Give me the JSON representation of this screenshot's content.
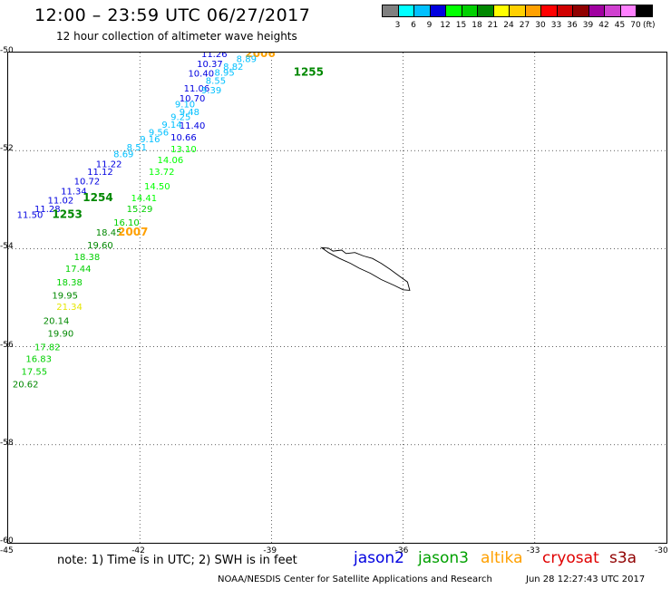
{
  "title": "12:00 – 23:59 UTC 06/27/2017",
  "subtitle": "12 hour collection of altimeter wave heights",
  "legend": {
    "colors": [
      "#808080",
      "#00ffff",
      "#00c0ff",
      "#0000e0",
      "#00ff00",
      "#00d000",
      "#008800",
      "#ffff00",
      "#ffd000",
      "#ffa000",
      "#ff0000",
      "#d00000",
      "#900000",
      "#a000a0",
      "#d040d0",
      "#ff80ff",
      "#000000"
    ],
    "labels": [
      "3",
      "6",
      "9",
      "12",
      "15",
      "18",
      "21",
      "24",
      "27",
      "30",
      "33",
      "36",
      "39",
      "42",
      "45",
      "70"
    ],
    "unit": "(ft)"
  },
  "map": {
    "lon_range": [
      -45,
      -30
    ],
    "lat_range": [
      -60,
      -50
    ],
    "x_ticks": [
      "-45",
      "-42",
      "-39",
      "-36",
      "-33",
      "-30"
    ],
    "y_ticks": [
      "-50",
      "-52",
      "-54",
      "-56",
      "-58",
      "-60"
    ]
  },
  "observations": [
    {
      "text": "11.26",
      "lon": -40.6,
      "lat": -50.02,
      "color": "#0000e0"
    },
    {
      "text": "2006",
      "lon": -39.6,
      "lat": -50.02,
      "color": "#ffa000",
      "big": true
    },
    {
      "text": "8.89",
      "lon": -39.8,
      "lat": -50.12,
      "color": "#00c0ff"
    },
    {
      "text": "10.37",
      "lon": -40.7,
      "lat": -50.22,
      "color": "#0000e0"
    },
    {
      "text": "8.82",
      "lon": -40.1,
      "lat": -50.28,
      "color": "#00c0ff"
    },
    {
      "text": "10.40",
      "lon": -40.9,
      "lat": -50.42,
      "color": "#0000e0"
    },
    {
      "text": "8.95",
      "lon": -40.3,
      "lat": -50.4,
      "color": "#00c0ff"
    },
    {
      "text": "1255",
      "lon": -38.5,
      "lat": -50.4,
      "color": "#008800",
      "big": true
    },
    {
      "text": "8.55",
      "lon": -40.5,
      "lat": -50.56,
      "color": "#00c0ff"
    },
    {
      "text": "11.06",
      "lon": -41.0,
      "lat": -50.72,
      "color": "#0000e0"
    },
    {
      "text": "9.39",
      "lon": -40.6,
      "lat": -50.76,
      "color": "#00c0ff"
    },
    {
      "text": "10.70",
      "lon": -41.1,
      "lat": -50.92,
      "color": "#0000e0"
    },
    {
      "text": "9.10",
      "lon": -41.2,
      "lat": -51.04,
      "color": "#00c0ff"
    },
    {
      "text": "9.48",
      "lon": -41.1,
      "lat": -51.2,
      "color": "#00c0ff"
    },
    {
      "text": "9.25",
      "lon": -41.3,
      "lat": -51.3,
      "color": "#00c0ff"
    },
    {
      "text": "9.14",
      "lon": -41.5,
      "lat": -51.46,
      "color": "#00c0ff"
    },
    {
      "text": "11.40",
      "lon": -41.1,
      "lat": -51.48,
      "color": "#0000e0"
    },
    {
      "text": "9.56",
      "lon": -41.8,
      "lat": -51.62,
      "color": "#00c0ff"
    },
    {
      "text": "10.66",
      "lon": -41.3,
      "lat": -51.72,
      "color": "#0000e0"
    },
    {
      "text": "9.16",
      "lon": -42.0,
      "lat": -51.76,
      "color": "#00c0ff"
    },
    {
      "text": "8.51",
      "lon": -42.3,
      "lat": -51.92,
      "color": "#00c0ff"
    },
    {
      "text": "13.10",
      "lon": -41.3,
      "lat": -51.96,
      "color": "#00ff00"
    },
    {
      "text": "8.69",
      "lon": -42.6,
      "lat": -52.06,
      "color": "#00c0ff"
    },
    {
      "text": "14.06",
      "lon": -41.6,
      "lat": -52.18,
      "color": "#00ff00"
    },
    {
      "text": "11.22",
      "lon": -43.0,
      "lat": -52.26,
      "color": "#0000e0"
    },
    {
      "text": "11.12",
      "lon": -43.2,
      "lat": -52.42,
      "color": "#0000e0"
    },
    {
      "text": "13.72",
      "lon": -41.8,
      "lat": -52.42,
      "color": "#00ff00"
    },
    {
      "text": "10.72",
      "lon": -43.5,
      "lat": -52.62,
      "color": "#0000e0"
    },
    {
      "text": "14.50",
      "lon": -41.9,
      "lat": -52.72,
      "color": "#00ff00"
    },
    {
      "text": "11.34",
      "lon": -43.8,
      "lat": -52.82,
      "color": "#0000e0"
    },
    {
      "text": "14.41",
      "lon": -42.2,
      "lat": -52.96,
      "color": "#00ff00"
    },
    {
      "text": "1254",
      "lon": -43.3,
      "lat": -52.96,
      "color": "#008800",
      "big": true
    },
    {
      "text": "11.02",
      "lon": -44.1,
      "lat": -53.0,
      "color": "#0000e0"
    },
    {
      "text": "11.28",
      "lon": -44.4,
      "lat": -53.18,
      "color": "#0000e0"
    },
    {
      "text": "15.29",
      "lon": -42.3,
      "lat": -53.18,
      "color": "#00d000"
    },
    {
      "text": "11.50",
      "lon": -44.8,
      "lat": -53.3,
      "color": "#0000e0"
    },
    {
      "text": "1253",
      "lon": -44.0,
      "lat": -53.3,
      "color": "#008800",
      "big": true
    },
    {
      "text": "16.10",
      "lon": -42.6,
      "lat": -53.46,
      "color": "#00d000"
    },
    {
      "text": "18.45",
      "lon": -43.0,
      "lat": -53.66,
      "color": "#008800"
    },
    {
      "text": "2007",
      "lon": -42.5,
      "lat": -53.66,
      "color": "#ffa000",
      "big": true
    },
    {
      "text": "19.60",
      "lon": -43.2,
      "lat": -53.92,
      "color": "#008800"
    },
    {
      "text": "18.38",
      "lon": -43.5,
      "lat": -54.16,
      "color": "#00d000"
    },
    {
      "text": "17.44",
      "lon": -43.7,
      "lat": -54.4,
      "color": "#00d000"
    },
    {
      "text": "18.38",
      "lon": -43.9,
      "lat": -54.68,
      "color": "#00d000"
    },
    {
      "text": "19.95",
      "lon": -44.0,
      "lat": -54.94,
      "color": "#008800"
    },
    {
      "text": "21.34",
      "lon": -43.9,
      "lat": -55.18,
      "color": "#e6e600"
    },
    {
      "text": "20.14",
      "lon": -44.2,
      "lat": -55.46,
      "color": "#008800"
    },
    {
      "text": "19.90",
      "lon": -44.1,
      "lat": -55.72,
      "color": "#008800"
    },
    {
      "text": "17.82",
      "lon": -44.4,
      "lat": -56.0,
      "color": "#00d000"
    },
    {
      "text": "16.83",
      "lon": -44.6,
      "lat": -56.24,
      "color": "#00d000"
    },
    {
      "text": "17.55",
      "lon": -44.7,
      "lat": -56.5,
      "color": "#00d000"
    },
    {
      "text": "20.62",
      "lon": -44.9,
      "lat": -56.76,
      "color": "#008800"
    }
  ],
  "coastline": [
    [
      -37.86,
      -53.98
    ],
    [
      -37.7,
      -53.99
    ],
    [
      -37.6,
      -54.05
    ],
    [
      -37.4,
      -54.03
    ],
    [
      -37.3,
      -54.1
    ],
    [
      -37.1,
      -54.08
    ],
    [
      -36.9,
      -54.15
    ],
    [
      -36.7,
      -54.2
    ],
    [
      -36.5,
      -54.3
    ],
    [
      -36.3,
      -54.42
    ],
    [
      -36.1,
      -54.55
    ],
    [
      -35.9,
      -54.68
    ],
    [
      -35.85,
      -54.85
    ],
    [
      -36.0,
      -54.84
    ],
    [
      -36.2,
      -54.75
    ],
    [
      -36.5,
      -54.63
    ],
    [
      -36.75,
      -54.5
    ],
    [
      -37.0,
      -54.4
    ],
    [
      -37.2,
      -54.3
    ],
    [
      -37.45,
      -54.2
    ],
    [
      -37.7,
      -54.08
    ],
    [
      -37.86,
      -53.98
    ]
  ],
  "note": "note: 1) Time is in UTC; 2) SWH is in feet",
  "satellites": [
    {
      "name": "jason2",
      "color": "#0000e0"
    },
    {
      "name": "jason3",
      "color": "#00a000"
    },
    {
      "name": "altika",
      "color": "#ffa000"
    },
    {
      "name": "cryosat",
      "color": "#e00000"
    },
    {
      "name": "s3a",
      "color": "#900000"
    }
  ],
  "credit": "NOAA/NESDIS Center for Satellite Applications and Research",
  "timestamp": "Jun 28 12:27:43 UTC 2017"
}
